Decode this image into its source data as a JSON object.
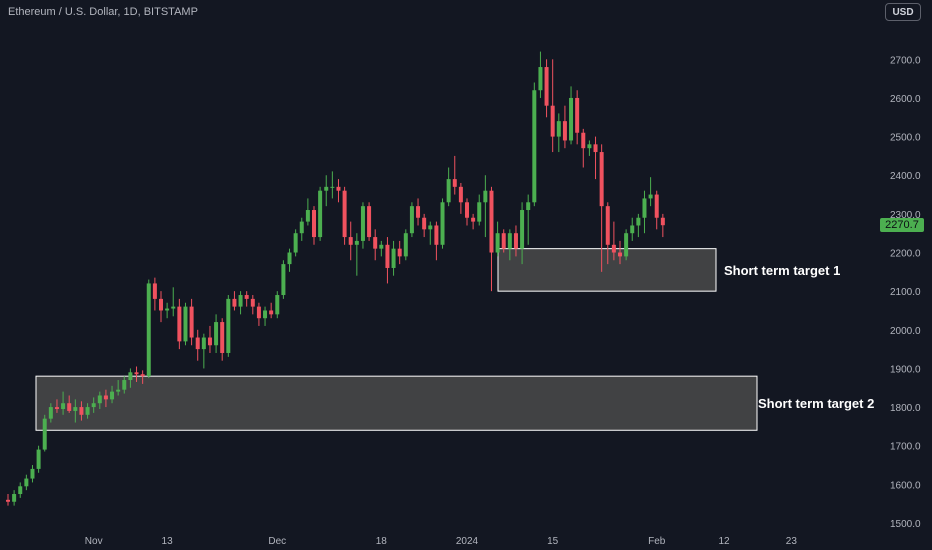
{
  "header": {
    "title": "Ethereum / U.S. Dollar, 1D, BITSTAMP",
    "currency_button": "USD"
  },
  "colors": {
    "up": "#4caf50",
    "down": "#f0525f",
    "background": "#131722",
    "axis_text": "#b2b5be",
    "zone_fill": "#4a4a4a",
    "price_badge": "#4caf50"
  },
  "last_price": "2270.7",
  "chart_data": {
    "type": "candlestick",
    "title": "Ethereum / U.S. Dollar, 1D, BITSTAMP",
    "ylim": [
      1480,
      2730
    ],
    "y_ticks": [
      1500,
      1600,
      1700,
      1800,
      1900,
      2000,
      2100,
      2200,
      2300,
      2400,
      2500,
      2600,
      2700
    ],
    "y_tick_labels": [
      "1500.0",
      "1600.0",
      "1700.0",
      "1800.0",
      "1900.0",
      "2000.0",
      "2100.0",
      "2200.0",
      "2300.0",
      "2400.0",
      "2500.0",
      "2600.0",
      "2700.0"
    ],
    "x_ticks": [
      {
        "label": "Nov",
        "index": 14
      },
      {
        "label": "13",
        "index": 26
      },
      {
        "label": "Dec",
        "index": 44
      },
      {
        "label": "18",
        "index": 61
      },
      {
        "label": "2024",
        "index": 75
      },
      {
        "label": "15",
        "index": 89
      },
      {
        "label": "Feb",
        "index": 106
      },
      {
        "label": "12",
        "index": 117
      },
      {
        "label": "23",
        "index": 128
      }
    ],
    "candles": [
      [
        1560,
        1575,
        1545,
        1555
      ],
      [
        1555,
        1585,
        1545,
        1575
      ],
      [
        1575,
        1605,
        1565,
        1595
      ],
      [
        1595,
        1625,
        1585,
        1615
      ],
      [
        1615,
        1650,
        1605,
        1640
      ],
      [
        1640,
        1700,
        1630,
        1690
      ],
      [
        1690,
        1780,
        1685,
        1770
      ],
      [
        1770,
        1810,
        1760,
        1800
      ],
      [
        1800,
        1820,
        1785,
        1795
      ],
      [
        1795,
        1840,
        1780,
        1810
      ],
      [
        1810,
        1830,
        1785,
        1790
      ],
      [
        1790,
        1820,
        1760,
        1800
      ],
      [
        1800,
        1815,
        1765,
        1780
      ],
      [
        1780,
        1810,
        1770,
        1800
      ],
      [
        1800,
        1825,
        1785,
        1810
      ],
      [
        1810,
        1840,
        1795,
        1830
      ],
      [
        1830,
        1845,
        1800,
        1820
      ],
      [
        1820,
        1855,
        1810,
        1840
      ],
      [
        1840,
        1870,
        1830,
        1845
      ],
      [
        1845,
        1880,
        1835,
        1870
      ],
      [
        1870,
        1900,
        1850,
        1890
      ],
      [
        1890,
        1905,
        1865,
        1885
      ],
      [
        1885,
        1895,
        1860,
        1880
      ],
      [
        1880,
        2130,
        1875,
        2120
      ],
      [
        2120,
        2135,
        2050,
        2080
      ],
      [
        2080,
        2100,
        2020,
        2050
      ],
      [
        2050,
        2070,
        2030,
        2055
      ],
      [
        2055,
        2110,
        2035,
        2060
      ],
      [
        2060,
        2080,
        1950,
        1970
      ],
      [
        1970,
        2070,
        1960,
        2060
      ],
      [
        2060,
        2080,
        1960,
        1980
      ],
      [
        1980,
        2000,
        1920,
        1950
      ],
      [
        1950,
        1990,
        1900,
        1980
      ],
      [
        1980,
        2010,
        1940,
        1960
      ],
      [
        1960,
        2040,
        1940,
        2020
      ],
      [
        2020,
        2030,
        1920,
        1940
      ],
      [
        1940,
        2090,
        1930,
        2080
      ],
      [
        2080,
        2100,
        2050,
        2060
      ],
      [
        2060,
        2100,
        2040,
        2090
      ],
      [
        2090,
        2100,
        2060,
        2080
      ],
      [
        2080,
        2090,
        2040,
        2060
      ],
      [
        2060,
        2070,
        2010,
        2030
      ],
      [
        2030,
        2060,
        2010,
        2050
      ],
      [
        2050,
        2070,
        2030,
        2040
      ],
      [
        2040,
        2100,
        2030,
        2090
      ],
      [
        2090,
        2180,
        2080,
        2170
      ],
      [
        2170,
        2210,
        2150,
        2200
      ],
      [
        2200,
        2260,
        2190,
        2250
      ],
      [
        2250,
        2290,
        2230,
        2280
      ],
      [
        2280,
        2340,
        2270,
        2310
      ],
      [
        2310,
        2320,
        2220,
        2240
      ],
      [
        2240,
        2370,
        2230,
        2360
      ],
      [
        2360,
        2400,
        2320,
        2370
      ],
      [
        2370,
        2410,
        2340,
        2370
      ],
      [
        2370,
        2390,
        2330,
        2360
      ],
      [
        2360,
        2370,
        2220,
        2240
      ],
      [
        2240,
        2280,
        2180,
        2220
      ],
      [
        2220,
        2250,
        2140,
        2230
      ],
      [
        2230,
        2330,
        2210,
        2320
      ],
      [
        2320,
        2330,
        2230,
        2240
      ],
      [
        2240,
        2260,
        2180,
        2210
      ],
      [
        2210,
        2230,
        2190,
        2220
      ],
      [
        2220,
        2240,
        2120,
        2160
      ],
      [
        2160,
        2230,
        2140,
        2210
      ],
      [
        2210,
        2230,
        2170,
        2190
      ],
      [
        2190,
        2260,
        2180,
        2250
      ],
      [
        2250,
        2330,
        2240,
        2320
      ],
      [
        2320,
        2340,
        2270,
        2290
      ],
      [
        2290,
        2300,
        2240,
        2260
      ],
      [
        2260,
        2280,
        2220,
        2270
      ],
      [
        2270,
        2280,
        2180,
        2220
      ],
      [
        2220,
        2340,
        2210,
        2330
      ],
      [
        2330,
        2420,
        2320,
        2390
      ],
      [
        2390,
        2450,
        2350,
        2370
      ],
      [
        2370,
        2380,
        2300,
        2330
      ],
      [
        2330,
        2340,
        2270,
        2290
      ],
      [
        2290,
        2300,
        2260,
        2280
      ],
      [
        2280,
        2350,
        2270,
        2330
      ],
      [
        2330,
        2400,
        2240,
        2360
      ],
      [
        2360,
        2370,
        2100,
        2200
      ],
      [
        2200,
        2280,
        2190,
        2250
      ],
      [
        2250,
        2260,
        2200,
        2210
      ],
      [
        2210,
        2260,
        2180,
        2250
      ],
      [
        2250,
        2270,
        2190,
        2210
      ],
      [
        2210,
        2330,
        2170,
        2310
      ],
      [
        2310,
        2350,
        2220,
        2330
      ],
      [
        2330,
        2640,
        2320,
        2620
      ],
      [
        2620,
        2720,
        2600,
        2680
      ],
      [
        2680,
        2700,
        2550,
        2580
      ],
      [
        2580,
        2700,
        2460,
        2500
      ],
      [
        2500,
        2560,
        2460,
        2540
      ],
      [
        2540,
        2580,
        2470,
        2490
      ],
      [
        2490,
        2630,
        2480,
        2600
      ],
      [
        2600,
        2620,
        2480,
        2510
      ],
      [
        2510,
        2520,
        2420,
        2470
      ],
      [
        2470,
        2490,
        2450,
        2480
      ],
      [
        2480,
        2500,
        2390,
        2460
      ],
      [
        2460,
        2480,
        2150,
        2320
      ],
      [
        2320,
        2330,
        2170,
        2220
      ],
      [
        2220,
        2280,
        2180,
        2200
      ],
      [
        2200,
        2230,
        2170,
        2190
      ],
      [
        2190,
        2260,
        2180,
        2250
      ],
      [
        2250,
        2290,
        2230,
        2270
      ],
      [
        2270,
        2300,
        2240,
        2290
      ],
      [
        2290,
        2360,
        2250,
        2340
      ],
      [
        2340,
        2395,
        2320,
        2350
      ],
      [
        2350,
        2360,
        2260,
        2290
      ],
      [
        2290,
        2300,
        2240,
        2270.7
      ]
    ],
    "annotations": [
      {
        "type": "rectangle",
        "label": "Short term target 1",
        "y_range": [
          2100,
          2210
        ],
        "x_range": [
          78,
          109
        ]
      },
      {
        "type": "rectangle",
        "label": "Short term target 2",
        "y_range": [
          1740,
          1880
        ],
        "x_range": [
          0,
          114
        ]
      }
    ]
  }
}
